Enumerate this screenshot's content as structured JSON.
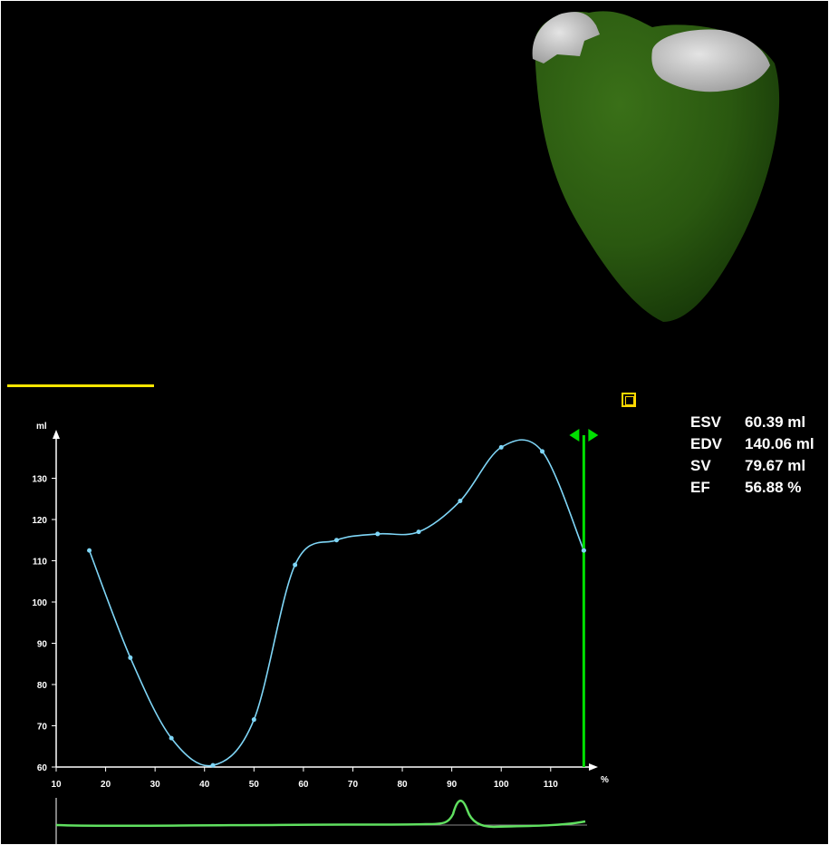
{
  "stats": {
    "esv_label": "ESV",
    "esv_value": "60.39 ml",
    "edv_label": "EDV",
    "edv_value": "140.06 ml",
    "sv_label": "SV",
    "sv_value": "79.67 ml",
    "ef_label": "EF",
    "ef_value": "56.88 %"
  },
  "colors": {
    "curve": "#7fd6f7",
    "marker": "#00e000",
    "accent": "#ffe600",
    "heart": "#2a5a10"
  },
  "icons": {
    "square_button": "square-icon",
    "marker_handle": "double-arrow-icon"
  },
  "chart_data": {
    "type": "line",
    "ylabel": "ml",
    "xlabel": "%",
    "xlim": [
      10,
      117
    ],
    "ylim": [
      60,
      140
    ],
    "xticks": [
      10,
      20,
      30,
      40,
      50,
      60,
      70,
      80,
      90,
      100,
      110
    ],
    "yticks": [
      60,
      70,
      80,
      90,
      100,
      110,
      120,
      130
    ],
    "x": [
      16.7,
      25,
      33.3,
      41.7,
      50,
      58.3,
      66.7,
      75,
      83.3,
      91.7,
      100,
      108.3,
      116.7
    ],
    "values": [
      112.5,
      86.5,
      67.0,
      60.4,
      71.5,
      109.0,
      115.0,
      116.5,
      117.0,
      124.5,
      137.5,
      136.5,
      112.5
    ],
    "marker_x": 116.7,
    "grid": false
  }
}
